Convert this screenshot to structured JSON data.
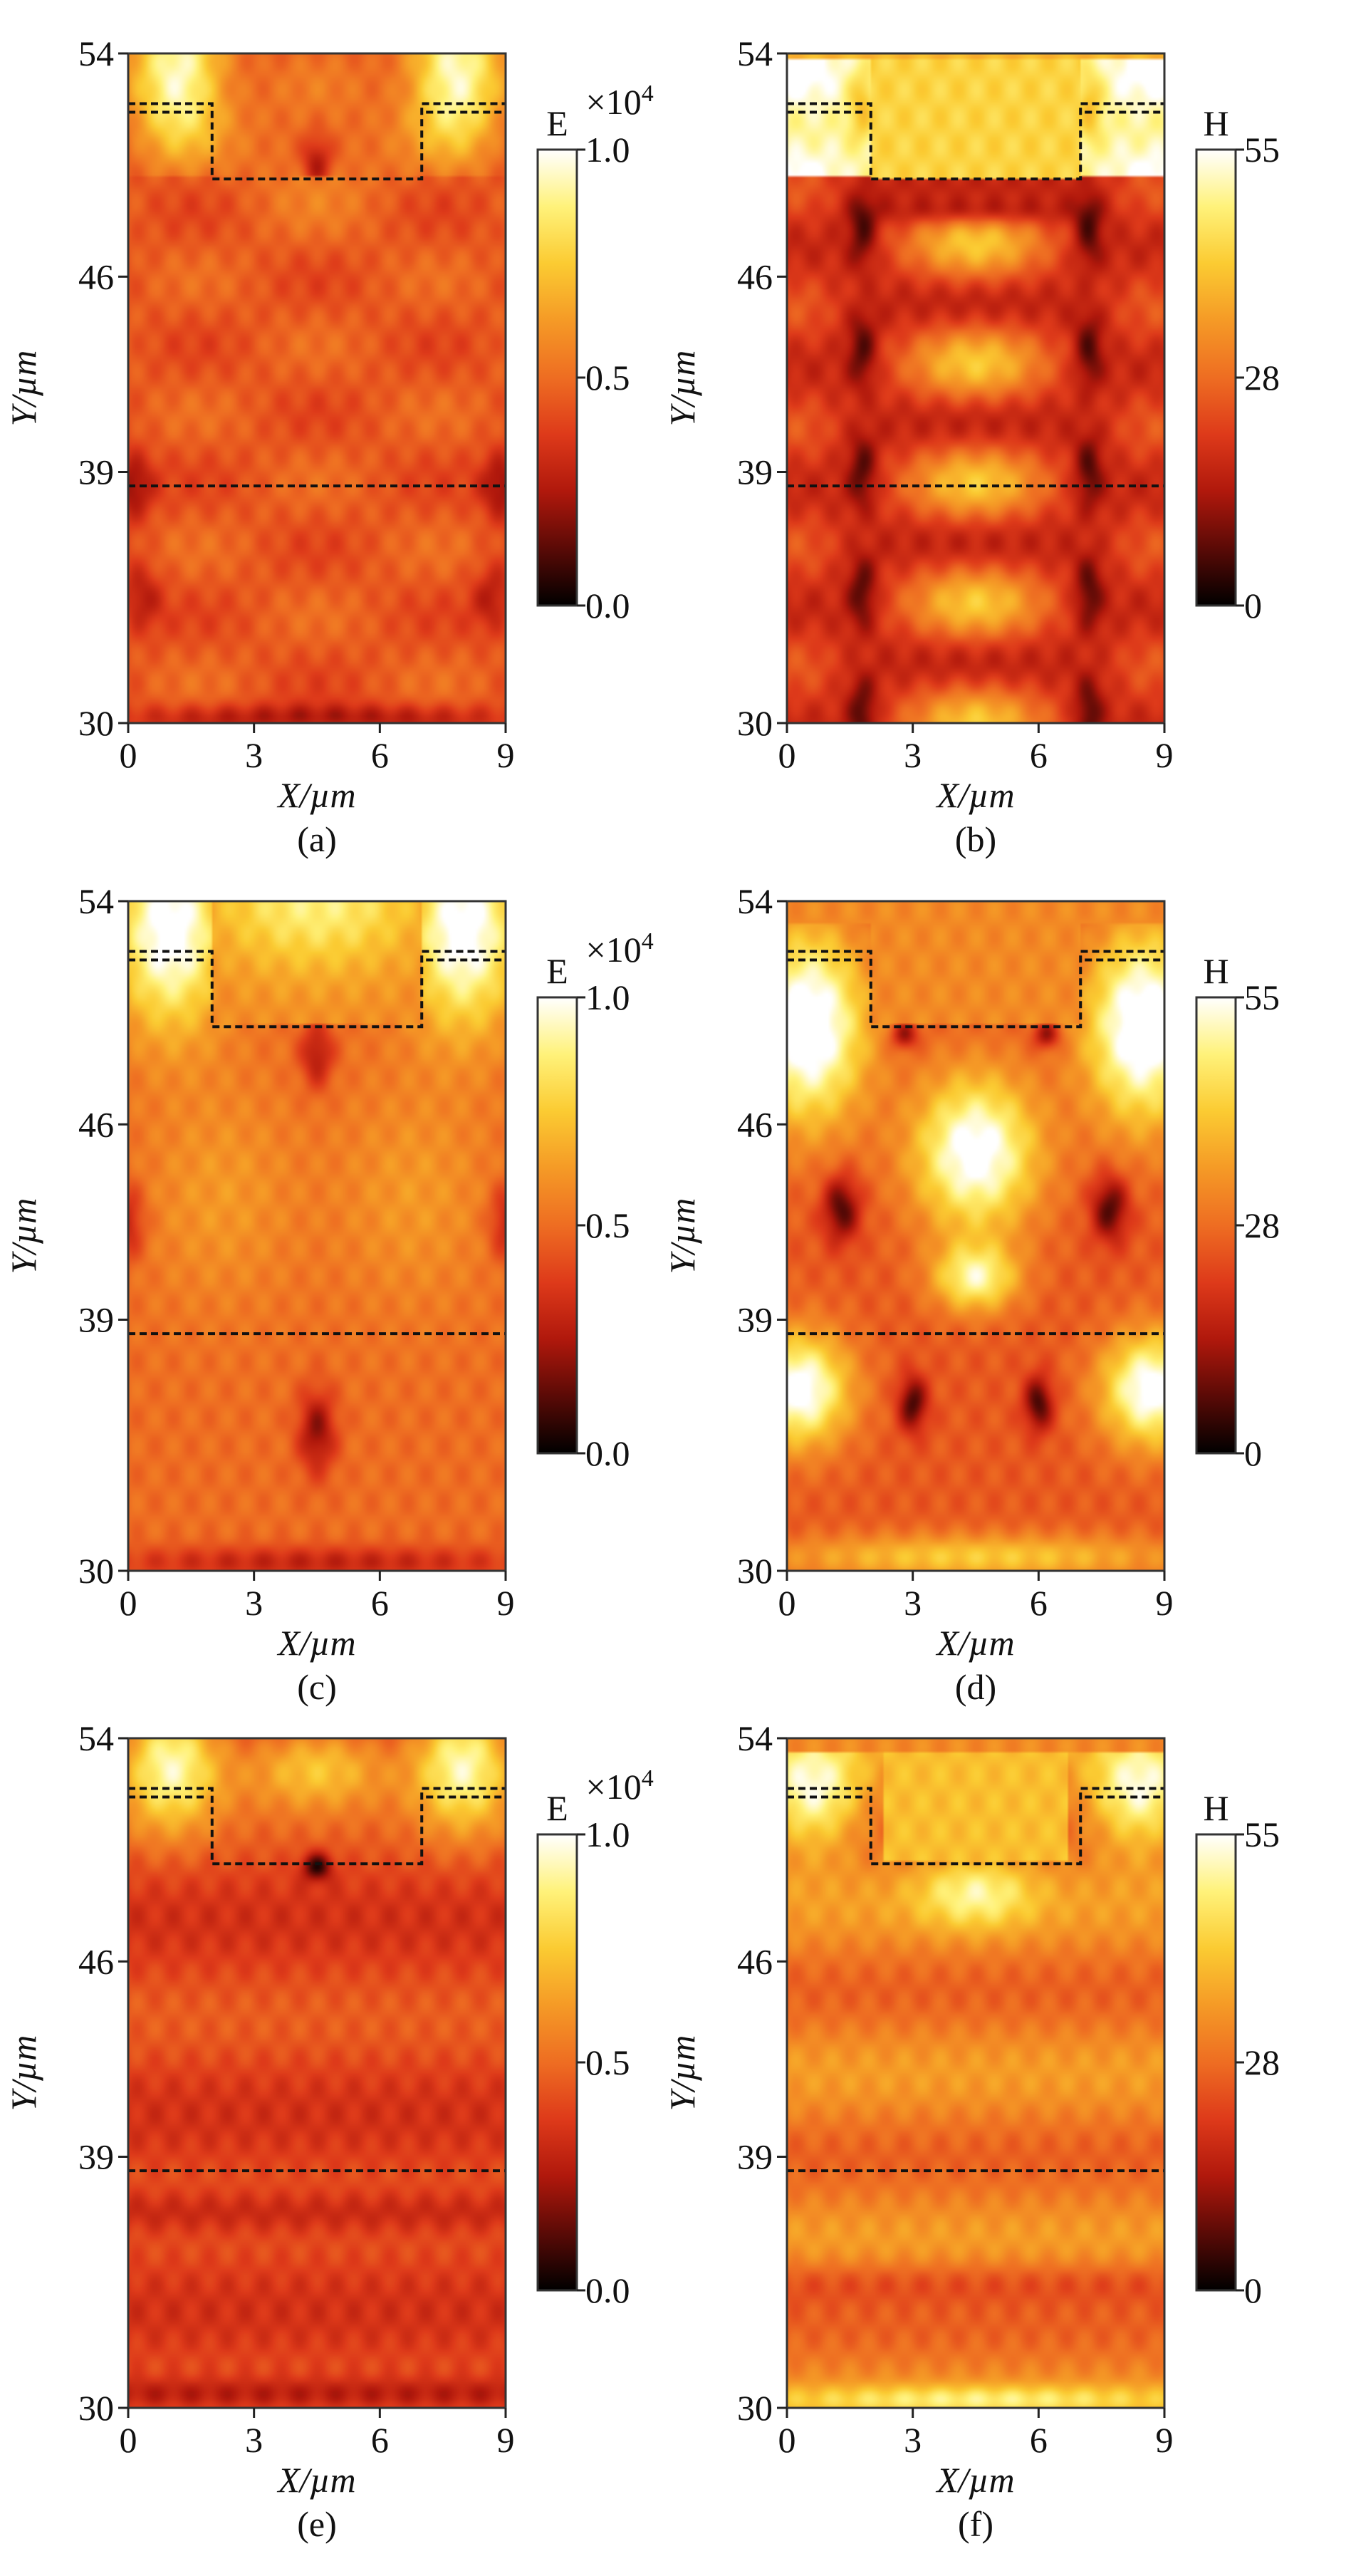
{
  "colors": {
    "colormap_stops": [
      "#000000",
      "#5a0a06",
      "#b0180c",
      "#de3a1a",
      "#ee6d22",
      "#f59a26",
      "#fbcb32",
      "#fff27a",
      "#ffffff"
    ],
    "boundary_line": "#111111"
  },
  "chart_data": [
    {
      "panel": "(a)",
      "type": "heatmap",
      "xlabel": "X/µm",
      "ylabel": "Y/µm",
      "xlim": [
        0,
        9
      ],
      "ylim": [
        30,
        54
      ],
      "x_ticks": [
        "0",
        "3",
        "6",
        "9"
      ],
      "y_ticks": [
        "30",
        "39",
        "46",
        "54"
      ],
      "colorbar": {
        "title": "E",
        "multiplier": "×10",
        "exponent": "4",
        "ticks": [
          "0.0",
          "0.5",
          "1.0"
        ],
        "range": [
          0,
          1.0
        ]
      },
      "structure": {
        "top_dashed_y": 52.2,
        "groove_x": [
          2,
          7
        ],
        "groove_bottom_y": 49.5,
        "lower_dashed_y": 38.5
      },
      "field": {
        "style": "uniform-with-nodes",
        "base": 0.45,
        "bright_top": true
      }
    },
    {
      "panel": "(b)",
      "type": "heatmap",
      "xlabel": "X/µm",
      "ylabel": "Y/µm",
      "xlim": [
        0,
        9
      ],
      "ylim": [
        30,
        54
      ],
      "x_ticks": [
        "0",
        "3",
        "6",
        "9"
      ],
      "y_ticks": [
        "30",
        "39",
        "46",
        "54"
      ],
      "colorbar": {
        "title": "H",
        "ticks": [
          "0",
          "28",
          "55"
        ],
        "range": [
          0,
          55
        ]
      },
      "structure": {
        "top_dashed_y": 52.2,
        "groove_x": [
          2,
          7
        ],
        "groove_bottom_y": 49.5,
        "lower_dashed_y": 38.5
      },
      "field": {
        "style": "standing-wave-central",
        "base": 0.45
      }
    },
    {
      "panel": "(c)",
      "type": "heatmap",
      "xlabel": "X/µm",
      "ylabel": "Y/µm",
      "xlim": [
        0,
        9
      ],
      "ylim": [
        30,
        54
      ],
      "x_ticks": [
        "0",
        "3",
        "6",
        "9"
      ],
      "y_ticks": [
        "30",
        "39",
        "46",
        "54"
      ],
      "colorbar": {
        "title": "E",
        "multiplier": "×10",
        "exponent": "4",
        "ticks": [
          "0.0",
          "0.5",
          "1.0"
        ],
        "range": [
          0,
          1.0
        ]
      },
      "structure": {
        "top_dashed_y": 52.2,
        "groove_x": [
          2,
          7
        ],
        "groove_bottom_y": 49.5,
        "lower_dashed_y": 38.5
      },
      "field": {
        "style": "broad-lobes",
        "base": 0.5
      }
    },
    {
      "panel": "(d)",
      "type": "heatmap",
      "xlabel": "X/µm",
      "ylabel": "Y/µm",
      "xlim": [
        0,
        9
      ],
      "ylim": [
        30,
        54
      ],
      "x_ticks": [
        "0",
        "3",
        "6",
        "9"
      ],
      "y_ticks": [
        "30",
        "39",
        "46",
        "54"
      ],
      "colorbar": {
        "title": "H",
        "ticks": [
          "0",
          "28",
          "55"
        ],
        "range": [
          0,
          55
        ]
      },
      "structure": {
        "top_dashed_y": 52.2,
        "groove_x": [
          2,
          7
        ],
        "groove_bottom_y": 49.5,
        "lower_dashed_y": 38.5
      },
      "field": {
        "style": "large-central-drop",
        "base": 0.55
      }
    },
    {
      "panel": "(e)",
      "type": "heatmap",
      "xlabel": "X/µm",
      "ylabel": "Y/µm",
      "xlim": [
        0,
        9
      ],
      "ylim": [
        30,
        54
      ],
      "x_ticks": [
        "0",
        "3",
        "6",
        "9"
      ],
      "y_ticks": [
        "30",
        "39",
        "46",
        "54"
      ],
      "colorbar": {
        "title": "E",
        "multiplier": "×10",
        "exponent": "4",
        "ticks": [
          "0.0",
          "0.5",
          "1.0"
        ],
        "range": [
          0,
          1.0
        ]
      },
      "structure": {
        "top_dashed_y": 52.2,
        "groove_x": [
          2,
          7
        ],
        "groove_bottom_y": 49.5,
        "lower_dashed_y": 38.5
      },
      "field": {
        "style": "horizontal-bands-dark",
        "base": 0.4
      }
    },
    {
      "panel": "(f)",
      "type": "heatmap",
      "xlabel": "X/µm",
      "ylabel": "Y/µm",
      "xlim": [
        0,
        9
      ],
      "ylim": [
        30,
        54
      ],
      "x_ticks": [
        "0",
        "3",
        "6",
        "9"
      ],
      "y_ticks": [
        "30",
        "39",
        "46",
        "54"
      ],
      "colorbar": {
        "title": "H",
        "ticks": [
          "0",
          "28",
          "55"
        ],
        "range": [
          0,
          55
        ]
      },
      "structure": {
        "top_dashed_y": 52.2,
        "groove_x": [
          2,
          7
        ],
        "groove_bottom_y": 49.5,
        "lower_dashed_y": 38.5
      },
      "field": {
        "style": "horizontal-bands-bright",
        "base": 0.55
      }
    }
  ]
}
